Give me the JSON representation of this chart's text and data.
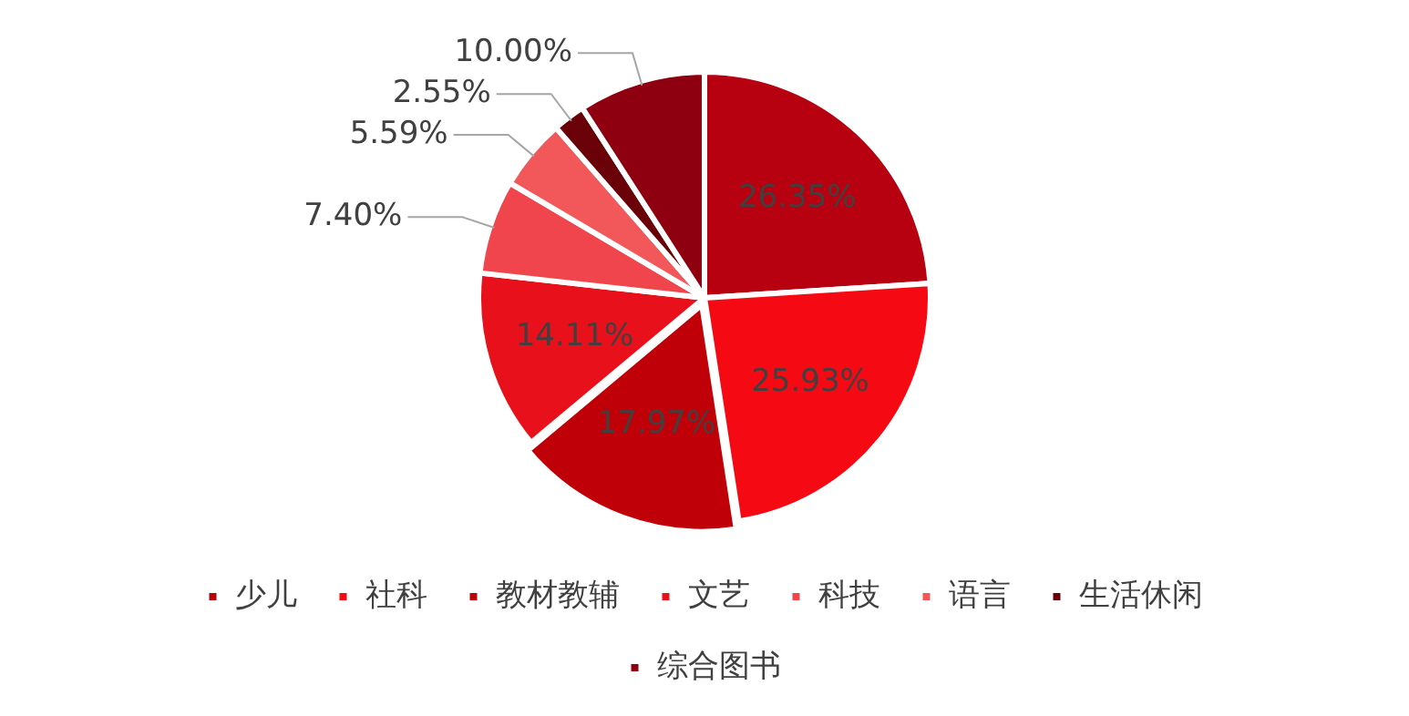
{
  "chart_data": {
    "type": "pie",
    "categories": [
      "少儿",
      "社科",
      "教材教辅",
      "文艺",
      "科技",
      "语言",
      "生活休闲",
      "综合图书"
    ],
    "values": [
      26.35,
      25.93,
      17.97,
      14.11,
      7.4,
      5.59,
      2.55,
      10.0
    ],
    "value_labels": [
      "26.35%",
      "25.93%",
      "17.97%",
      "14.11%",
      "7.40%",
      "5.59%",
      "2.55%",
      "10.00%"
    ],
    "colors": [
      "#b70010",
      "#f50a14",
      "#c00008",
      "#e8101a",
      "#f0454c",
      "#f2575a",
      "#6a0008",
      "#8e0010"
    ],
    "legend": "bottom"
  }
}
